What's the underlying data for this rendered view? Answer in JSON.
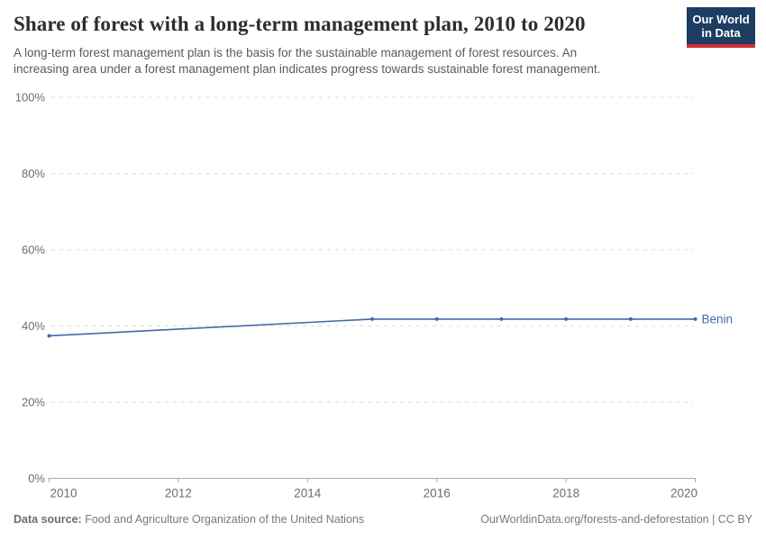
{
  "header": {
    "title": "Share of forest with a long-term management plan, 2010 to 2020",
    "subtitle": "A long-term forest management plan is the basis for the sustainable management of forest resources. An\nincreasing area under a forest management plan indicates progress towards sustainable forest management.",
    "logo": {
      "line1": "Our World",
      "line2": "in Data",
      "bg_color": "#1d3d63",
      "accent_color": "#cf3139"
    }
  },
  "chart_data": {
    "type": "line",
    "title": "Share of forest with a long-term management plan, 2010 to 2020",
    "xlabel": "",
    "ylabel": "",
    "xlim": [
      2010,
      2020
    ],
    "ylim": [
      0,
      100
    ],
    "x_ticks": [
      2010,
      2012,
      2014,
      2016,
      2018,
      2020
    ],
    "y_ticks": [
      0,
      20,
      40,
      60,
      80,
      100
    ],
    "y_tick_suffix": "%",
    "grid": "horizontal-dashed",
    "legend_position": "end-of-line-label",
    "series": [
      {
        "name": "Benin",
        "color": "#4868a8",
        "points": [
          {
            "x": 2010,
            "y": 37.4
          },
          {
            "x": 2015,
            "y": 41.8
          },
          {
            "x": 2016,
            "y": 41.8
          },
          {
            "x": 2017,
            "y": 41.8
          },
          {
            "x": 2018,
            "y": 41.8
          },
          {
            "x": 2019,
            "y": 41.8
          },
          {
            "x": 2020,
            "y": 41.8
          }
        ]
      }
    ],
    "style": {
      "gridline_color": "#dcdcdc",
      "axis_color": "#a8a8a8",
      "tick_label_color": "#6e6e6e"
    }
  },
  "footer": {
    "datasource_label": "Data source:",
    "datasource_value": " Food and Agriculture Organization of the United Nations",
    "attribution": "OurWorldinData.org/forests-and-deforestation | CC BY"
  }
}
